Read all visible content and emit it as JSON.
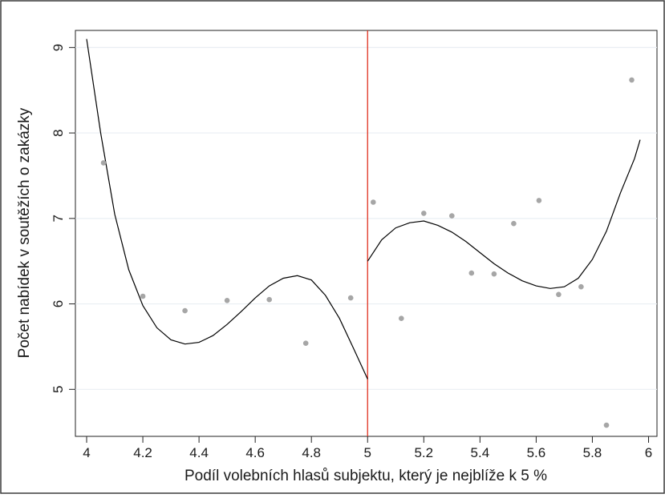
{
  "chart_data": {
    "type": "scatter",
    "title": "",
    "xlabel": "Podíl volebních hlasů subjektu, který je nejblíže k 5 %",
    "ylabel": "Počet nabídek v soutěžích o zakázky",
    "xlim": [
      3.96,
      6.03
    ],
    "ylim": [
      4.45,
      9.2
    ],
    "x_ticks": [
      "4",
      "4.2",
      "4.4",
      "4.6",
      "4.8",
      "5",
      "5.2",
      "5.4",
      "5.6",
      "5.8",
      "6"
    ],
    "y_ticks": [
      "5",
      "6",
      "7",
      "8",
      "9"
    ],
    "grid": "horizontal",
    "threshold_x": 5,
    "colors": {
      "points": "#a6a6a6",
      "fit": "#000000",
      "threshold": "#e0301e",
      "grid": "#e9eef3"
    },
    "points": [
      {
        "x": 4.06,
        "y": 7.65
      },
      {
        "x": 4.2,
        "y": 6.09
      },
      {
        "x": 4.35,
        "y": 5.92
      },
      {
        "x": 4.5,
        "y": 6.04
      },
      {
        "x": 4.65,
        "y": 6.05
      },
      {
        "x": 4.78,
        "y": 5.54
      },
      {
        "x": 4.94,
        "y": 6.07
      },
      {
        "x": 5.02,
        "y": 7.19
      },
      {
        "x": 5.12,
        "y": 5.83
      },
      {
        "x": 5.2,
        "y": 7.06
      },
      {
        "x": 5.3,
        "y": 7.03
      },
      {
        "x": 5.37,
        "y": 6.36
      },
      {
        "x": 5.45,
        "y": 6.35
      },
      {
        "x": 5.52,
        "y": 6.94
      },
      {
        "x": 5.61,
        "y": 7.21
      },
      {
        "x": 5.68,
        "y": 6.11
      },
      {
        "x": 5.76,
        "y": 6.2
      },
      {
        "x": 5.85,
        "y": 4.58
      },
      {
        "x": 5.94,
        "y": 8.62
      }
    ],
    "fit_left": [
      [
        4.0,
        9.1
      ],
      [
        4.05,
        8.0
      ],
      [
        4.1,
        7.05
      ],
      [
        4.15,
        6.4
      ],
      [
        4.2,
        5.98
      ],
      [
        4.25,
        5.72
      ],
      [
        4.3,
        5.58
      ],
      [
        4.35,
        5.53
      ],
      [
        4.4,
        5.55
      ],
      [
        4.45,
        5.63
      ],
      [
        4.5,
        5.76
      ],
      [
        4.55,
        5.91
      ],
      [
        4.6,
        6.07
      ],
      [
        4.65,
        6.21
      ],
      [
        4.7,
        6.3
      ],
      [
        4.75,
        6.33
      ],
      [
        4.8,
        6.28
      ],
      [
        4.85,
        6.1
      ],
      [
        4.9,
        5.83
      ],
      [
        4.95,
        5.48
      ],
      [
        5.0,
        5.12
      ]
    ],
    "fit_right": [
      [
        5.0,
        6.5
      ],
      [
        5.05,
        6.75
      ],
      [
        5.1,
        6.89
      ],
      [
        5.15,
        6.95
      ],
      [
        5.2,
        6.97
      ],
      [
        5.25,
        6.92
      ],
      [
        5.3,
        6.84
      ],
      [
        5.35,
        6.73
      ],
      [
        5.4,
        6.6
      ],
      [
        5.45,
        6.47
      ],
      [
        5.5,
        6.36
      ],
      [
        5.55,
        6.27
      ],
      [
        5.6,
        6.21
      ],
      [
        5.65,
        6.18
      ],
      [
        5.7,
        6.2
      ],
      [
        5.75,
        6.3
      ],
      [
        5.8,
        6.52
      ],
      [
        5.85,
        6.85
      ],
      [
        5.9,
        7.3
      ],
      [
        5.95,
        7.7
      ],
      [
        5.97,
        7.92
      ]
    ]
  }
}
